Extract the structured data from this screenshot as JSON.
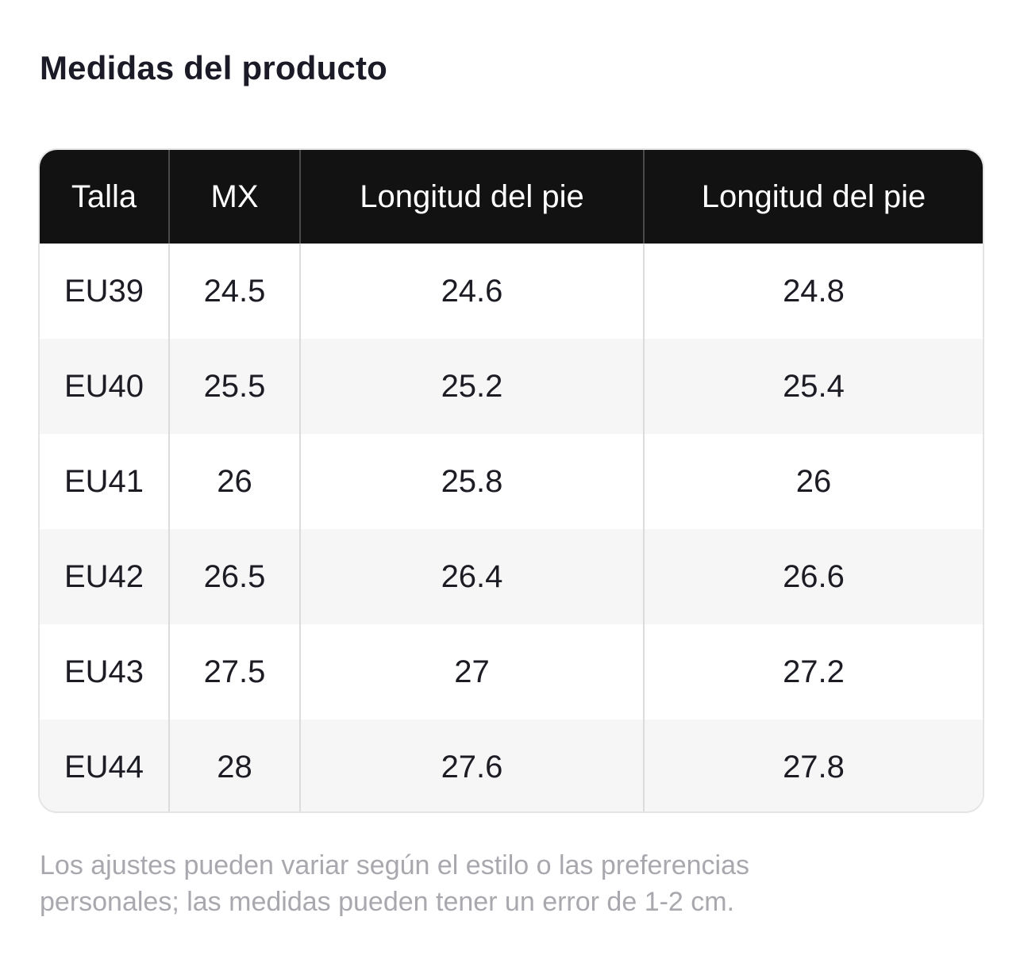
{
  "title": "Medidas del producto",
  "table": {
    "headers": [
      "Talla",
      "MX",
      "Longitud del pie",
      "Longitud del pie"
    ],
    "rows": [
      [
        "EU39",
        "24.5",
        "24.6",
        "24.8"
      ],
      [
        "EU40",
        "25.5",
        "25.2",
        "25.4"
      ],
      [
        "EU41",
        "26",
        "25.8",
        "26"
      ],
      [
        "EU42",
        "26.5",
        "26.4",
        "26.6"
      ],
      [
        "EU43",
        "27.5",
        "27",
        "27.2"
      ],
      [
        "EU44",
        "28",
        "27.6",
        "27.8"
      ]
    ]
  },
  "footnote": "Los ajustes pueden variar según el estilo o las preferencias personales; las medidas pueden tener un error de 1-2 cm.",
  "colors": {
    "header_bg": "#121212",
    "header_text": "#ffffff",
    "row_alt_bg": "#f6f6f6",
    "footnote_text": "#a8a8ae"
  }
}
